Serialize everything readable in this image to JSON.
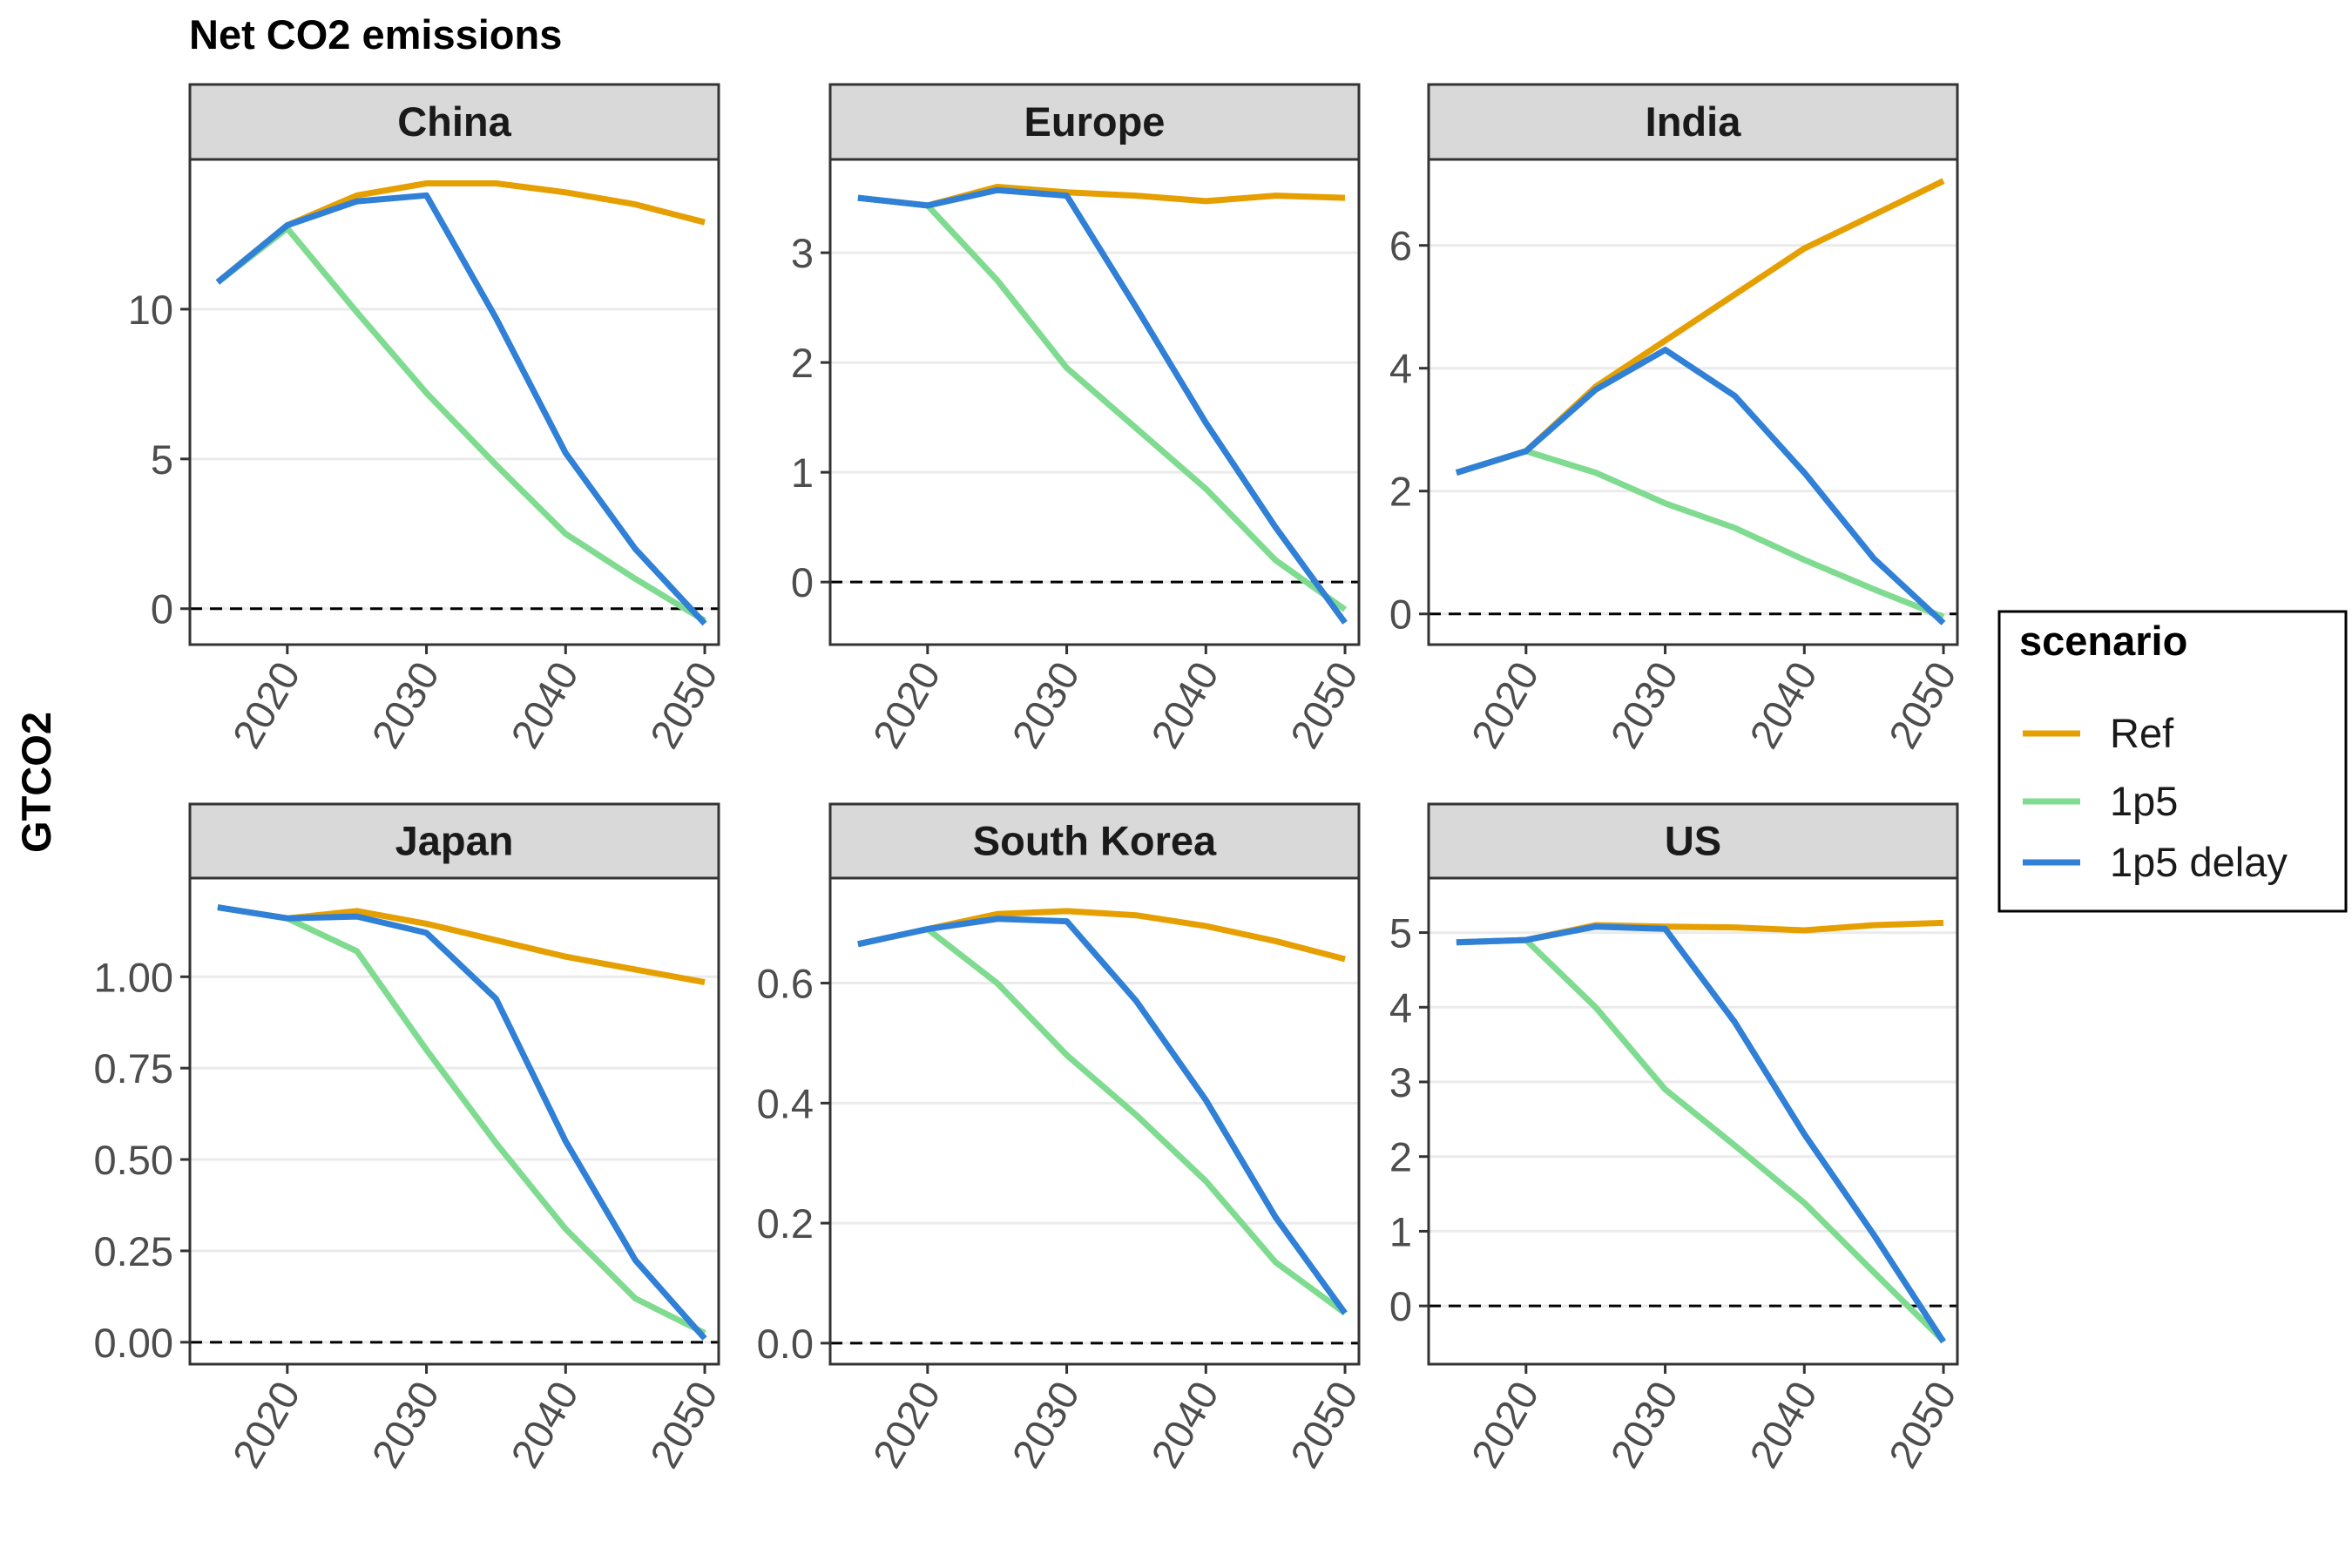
{
  "title": "Net CO2 emissions",
  "ylabel": "GTCO2",
  "legend": {
    "title": "scenario",
    "entries": [
      {
        "label": "Ref",
        "color": "#E69F00"
      },
      {
        "label": "1p5",
        "color": "#7FDB8F"
      },
      {
        "label": "1p5 delay",
        "color": "#2F80D6"
      }
    ]
  },
  "chart_data": [
    {
      "type": "line",
      "title": "China",
      "x": [
        2015,
        2020,
        2025,
        2030,
        2035,
        2040,
        2045,
        2050
      ],
      "xlim": [
        2013,
        2051
      ],
      "xticks": [
        2020,
        2030,
        2040,
        2050
      ],
      "ylim": [
        -1.2,
        15
      ],
      "yticks": [
        0,
        5,
        10
      ],
      "ytick_labels": [
        "0",
        "5",
        "10"
      ],
      "reference_line": 0,
      "series": [
        {
          "name": "Ref",
          "values": [
            10.9,
            12.8,
            13.8,
            14.2,
            14.2,
            13.9,
            13.5,
            12.9
          ]
        },
        {
          "name": "1p5",
          "values": [
            10.9,
            12.7,
            9.9,
            7.2,
            4.8,
            2.5,
            1.0,
            -0.4
          ]
        },
        {
          "name": "1p5 delay",
          "values": [
            10.9,
            12.8,
            13.6,
            13.8,
            9.7,
            5.2,
            2.0,
            -0.5
          ]
        }
      ]
    },
    {
      "type": "line",
      "title": "Europe",
      "x": [
        2015,
        2020,
        2025,
        2030,
        2035,
        2040,
        2045,
        2050
      ],
      "xlim": [
        2013,
        2051
      ],
      "xticks": [
        2020,
        2030,
        2040,
        2050
      ],
      "ylim": [
        -0.57,
        3.85
      ],
      "yticks": [
        0,
        1,
        2,
        3
      ],
      "ytick_labels": [
        "0",
        "1",
        "2",
        "3"
      ],
      "reference_line": 0,
      "series": [
        {
          "name": "Ref",
          "values": [
            3.5,
            3.43,
            3.6,
            3.55,
            3.52,
            3.47,
            3.52,
            3.5
          ]
        },
        {
          "name": "1p5",
          "values": [
            3.5,
            3.43,
            2.75,
            1.95,
            1.4,
            0.85,
            0.2,
            -0.25
          ]
        },
        {
          "name": "1p5 delay",
          "values": [
            3.5,
            3.43,
            3.57,
            3.52,
            2.5,
            1.45,
            0.5,
            -0.37
          ]
        }
      ]
    },
    {
      "type": "line",
      "title": "India",
      "x": [
        2015,
        2020,
        2025,
        2030,
        2035,
        2040,
        2045,
        2050
      ],
      "xlim": [
        2013,
        2051
      ],
      "xticks": [
        2020,
        2030,
        2040,
        2050
      ],
      "ylim": [
        -0.5,
        7.4
      ],
      "yticks": [
        0,
        2,
        4,
        6
      ],
      "ytick_labels": [
        "0",
        "2",
        "4",
        "6"
      ],
      "reference_line": 0,
      "series": [
        {
          "name": "Ref",
          "values": [
            2.3,
            2.65,
            3.7,
            4.45,
            5.2,
            5.95,
            6.5,
            7.05
          ]
        },
        {
          "name": "1p5",
          "values": [
            2.3,
            2.65,
            2.3,
            1.8,
            1.4,
            0.88,
            0.4,
            -0.05
          ]
        },
        {
          "name": "1p5 delay",
          "values": [
            2.3,
            2.65,
            3.65,
            4.3,
            3.55,
            2.3,
            0.9,
            -0.15
          ]
        }
      ]
    },
    {
      "type": "line",
      "title": "Japan",
      "x": [
        2015,
        2020,
        2025,
        2030,
        2035,
        2040,
        2045,
        2050
      ],
      "xlim": [
        2013,
        2051
      ],
      "xticks": [
        2020,
        2030,
        2040,
        2050
      ],
      "ylim": [
        -0.06,
        1.27
      ],
      "yticks": [
        0,
        0.25,
        0.5,
        0.75,
        1.0
      ],
      "ytick_labels": [
        "0.00",
        "0.25",
        "0.50",
        "0.75",
        "1.00"
      ],
      "reference_line": 0,
      "series": [
        {
          "name": "Ref",
          "values": [
            1.19,
            1.16,
            1.18,
            1.145,
            1.1,
            1.055,
            1.02,
            0.985
          ]
        },
        {
          "name": "1p5",
          "values": [
            1.19,
            1.16,
            1.07,
            0.8,
            0.545,
            0.31,
            0.12,
            0.025
          ]
        },
        {
          "name": "1p5 delay",
          "values": [
            1.19,
            1.16,
            1.165,
            1.12,
            0.94,
            0.55,
            0.225,
            0.01
          ]
        }
      ]
    },
    {
      "type": "line",
      "title": "South Korea",
      "x": [
        2015,
        2020,
        2025,
        2030,
        2035,
        2040,
        2045,
        2050
      ],
      "xlim": [
        2013,
        2051
      ],
      "xticks": [
        2020,
        2030,
        2040,
        2050
      ],
      "ylim": [
        -0.035,
        0.775
      ],
      "yticks": [
        0,
        0.2,
        0.4,
        0.6
      ],
      "ytick_labels": [
        "0.0",
        "0.2",
        "0.4",
        "0.6"
      ],
      "reference_line": 0,
      "series": [
        {
          "name": "Ref",
          "values": [
            0.665,
            0.69,
            0.715,
            0.72,
            0.713,
            0.695,
            0.67,
            0.64
          ]
        },
        {
          "name": "1p5",
          "values": [
            0.665,
            0.69,
            0.6,
            0.48,
            0.38,
            0.27,
            0.135,
            0.05
          ]
        },
        {
          "name": "1p5 delay",
          "values": [
            0.665,
            0.69,
            0.707,
            0.703,
            0.57,
            0.405,
            0.21,
            0.05
          ]
        }
      ]
    },
    {
      "type": "line",
      "title": "US",
      "x": [
        2015,
        2020,
        2025,
        2030,
        2035,
        2040,
        2045,
        2050
      ],
      "xlim": [
        2013,
        2051
      ],
      "xticks": [
        2020,
        2030,
        2040,
        2050
      ],
      "ylim": [
        -0.78,
        5.73
      ],
      "yticks": [
        0,
        1,
        2,
        3,
        4,
        5
      ],
      "ytick_labels": [
        "0",
        "1",
        "2",
        "3",
        "4",
        "5"
      ],
      "reference_line": 0,
      "series": [
        {
          "name": "Ref",
          "values": [
            4.87,
            4.9,
            5.1,
            5.08,
            5.07,
            5.03,
            5.1,
            5.13
          ]
        },
        {
          "name": "1p5",
          "values": [
            4.87,
            4.9,
            4.0,
            2.9,
            2.15,
            1.38,
            0.45,
            -0.47
          ]
        },
        {
          "name": "1p5 delay",
          "values": [
            4.87,
            4.9,
            5.08,
            5.05,
            3.8,
            2.3,
            0.95,
            -0.48
          ]
        }
      ]
    }
  ]
}
